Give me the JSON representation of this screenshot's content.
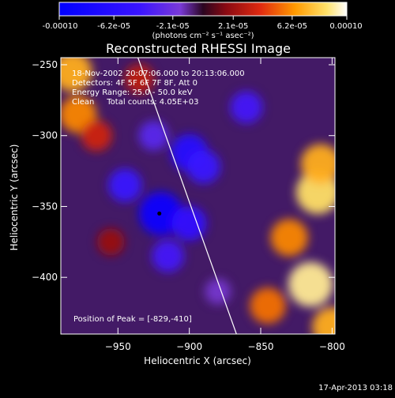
{
  "colorbar": {
    "tick_labels": [
      "-0.00010",
      "-6.2e-05",
      "-2.1e-05",
      "2.1e-05",
      "6.2e-05",
      "0.00010"
    ],
    "tick_values": [
      -0.0001,
      -6.2e-05,
      -2.1e-05,
      2.1e-05,
      6.2e-05,
      0.0001
    ],
    "units_label": "(photons cm⁻² s⁻¹ asec⁻²)",
    "range": [
      -0.0001,
      0.0001
    ]
  },
  "info": {
    "line1": "18-Nov-2002 20:07:06.000 to 20:13:06.000",
    "line2": "Detectors: 4F 5F 6F 7F 8F, Att 0",
    "line3": "Energy Range: 25.0 - 50.0 keV",
    "line4": "Clean     Total counts: 4.05E+03",
    "peak": "Position of Peak = [-829,-410]"
  },
  "footer": {
    "timestamp": "17-Apr-2013 03:18"
  },
  "chart_data": {
    "type": "heatmap",
    "title": "Reconstructed RHESSI Image",
    "xlabel": "Heliocentric X (arcsec)",
    "ylabel": "Heliocentric Y (arcsec)",
    "xlim": [
      -990,
      -798
    ],
    "ylim": [
      -440,
      -245
    ],
    "xticks": [
      -950,
      -900,
      -850,
      -800
    ],
    "yticks": [
      -250,
      -300,
      -350,
      -400
    ],
    "xtick_labels": [
      "−950",
      "−900",
      "−850",
      "−800"
    ],
    "ytick_labels": [
      "−250",
      "−300",
      "−350",
      "−400"
    ],
    "colormap": "blue-purple-red-yellow-white",
    "peak_position": [
      -829,
      -410
    ],
    "min_marker": [
      -921,
      -355
    ],
    "limb_line": [
      [
        -936,
        -245
      ],
      [
        -867,
        -440
      ]
    ],
    "blobs": [
      {
        "x": -982,
        "y": -255,
        "value": 7e-05
      },
      {
        "x": -978,
        "y": -285,
        "value": 6e-05
      },
      {
        "x": -965,
        "y": -300,
        "value": 3.5e-05
      },
      {
        "x": -935,
        "y": -260,
        "value": 3e-05
      },
      {
        "x": -810,
        "y": -340,
        "value": 8.5e-05
      },
      {
        "x": -808,
        "y": -320,
        "value": 7e-05
      },
      {
        "x": -815,
        "y": -405,
        "value": 9e-05
      },
      {
        "x": -830,
        "y": -372,
        "value": 6e-05
      },
      {
        "x": -845,
        "y": -420,
        "value": 5.5e-05
      },
      {
        "x": -800,
        "y": -435,
        "value": 7e-05
      },
      {
        "x": -920,
        "y": -355,
        "value": -8.5e-05
      },
      {
        "x": -900,
        "y": -362,
        "value": -5e-05
      },
      {
        "x": -915,
        "y": -385,
        "value": -4e-05
      },
      {
        "x": -900,
        "y": -312,
        "value": -6e-05
      },
      {
        "x": -890,
        "y": -322,
        "value": -4.5e-05
      },
      {
        "x": -945,
        "y": -335,
        "value": -4.5e-05
      },
      {
        "x": -860,
        "y": -280,
        "value": -4e-05
      },
      {
        "x": -925,
        "y": -300,
        "value": -3e-05
      },
      {
        "x": -955,
        "y": -375,
        "value": 2e-05
      },
      {
        "x": -880,
        "y": -410,
        "value": -1.5e-05
      }
    ]
  }
}
